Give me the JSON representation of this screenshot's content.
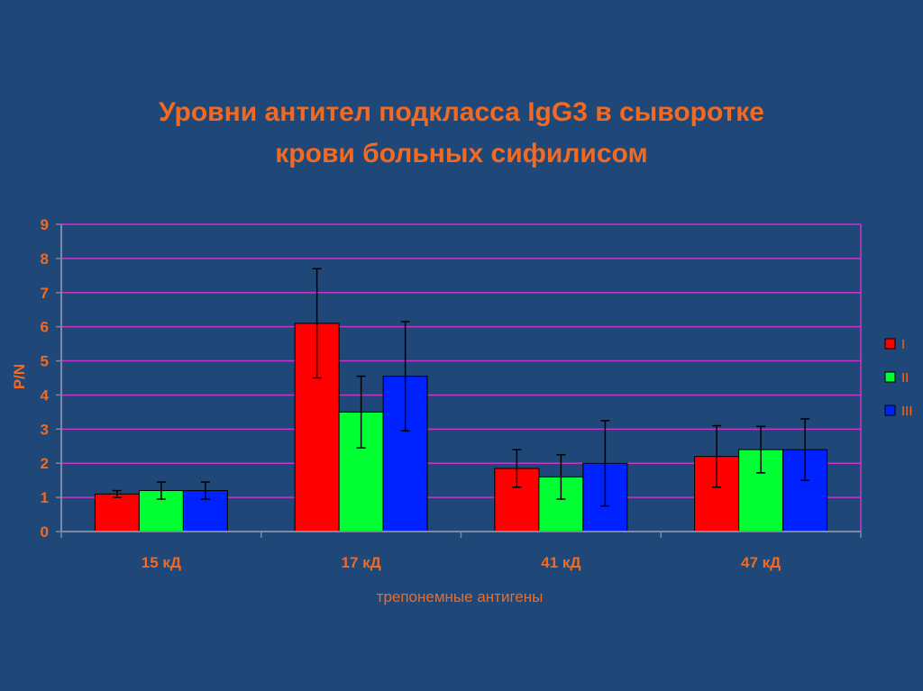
{
  "chart_data": {
    "type": "bar",
    "title_line1": "Уровни антител подкласса IgG3 в сыворотке",
    "title_line2": "крови больных сифилисом",
    "xlabel": "трепонемные антигены",
    "ylabel": "P/N",
    "ylim": [
      0,
      9
    ],
    "yticks": [
      0,
      1,
      2,
      3,
      4,
      5,
      6,
      7,
      8,
      9
    ],
    "grid": true,
    "legend_position": "right",
    "categories": [
      "15 кД",
      "17 кД",
      "41 кД",
      "47 кД"
    ],
    "series": [
      {
        "name": "I",
        "color": "#ff0000",
        "values": [
          1.1,
          6.1,
          1.85,
          2.2
        ],
        "errors": [
          0.1,
          1.6,
          0.55,
          0.9
        ]
      },
      {
        "name": "II",
        "color": "#00ff33",
        "values": [
          1.2,
          3.5,
          1.6,
          2.4
        ],
        "errors": [
          0.25,
          1.05,
          0.65,
          0.68
        ]
      },
      {
        "name": "III",
        "color": "#0022ff",
        "values": [
          1.2,
          4.55,
          2.0,
          2.4
        ],
        "errors": [
          0.25,
          1.6,
          1.25,
          0.9
        ]
      }
    ],
    "colors": {
      "background": "#1f4778",
      "text": "#f26a21",
      "plot_border": "#cc33cc",
      "axis": "#7a8aa8"
    }
  }
}
